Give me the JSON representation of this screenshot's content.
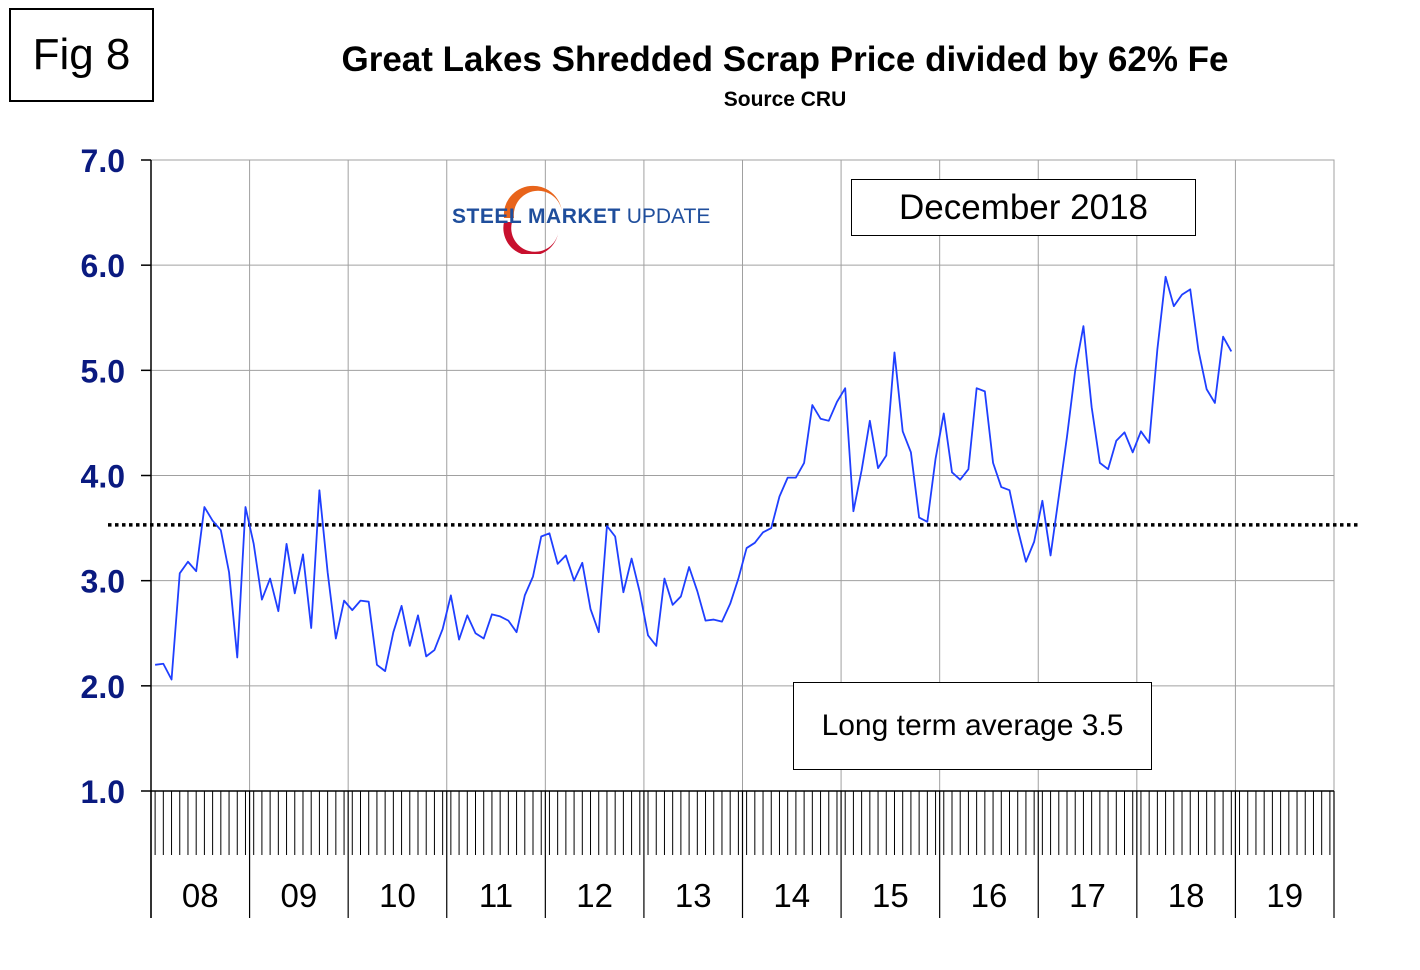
{
  "figure_label": "Fig 8",
  "logo": {
    "word1": "STEEL",
    "word2": "MARKET",
    "word3": "UPDATE",
    "accent": "#e8641b",
    "blue": "#1f4e9c"
  },
  "annotations": {
    "date": "December 2018",
    "average": "Long term average 3.5"
  },
  "chart_data": {
    "type": "line",
    "title": "Great Lakes Shredded Scrap Price divided by 62% Fe",
    "subtitle": "Source CRU",
    "xlabel": "",
    "ylabel": "",
    "ylim": [
      1.0,
      7.0
    ],
    "y_ticks": [
      "1.0",
      "2.0",
      "3.0",
      "4.0",
      "5.0",
      "6.0",
      "7.0"
    ],
    "x_categories": [
      "08",
      "09",
      "10",
      "11",
      "12",
      "13",
      "14",
      "15",
      "16",
      "17",
      "18",
      "19"
    ],
    "reference_line": {
      "value": 3.53,
      "style": "dotted"
    },
    "line_color": "#1f3fff",
    "grid": true,
    "series": [
      {
        "start": "2008-01",
        "interval": "month",
        "values": [
          2.2,
          2.21,
          2.06,
          3.07,
          3.18,
          3.09,
          3.7,
          3.57,
          3.48,
          3.08,
          2.27,
          3.7,
          3.35,
          2.82,
          3.02,
          2.71,
          3.35,
          2.88,
          3.25,
          2.55,
          3.86,
          3.08,
          2.45,
          2.81,
          2.72,
          2.81,
          2.8,
          2.2,
          2.14,
          2.51,
          2.76,
          2.38,
          2.67,
          2.28,
          2.34,
          2.54,
          2.86,
          2.44,
          2.67,
          2.5,
          2.45,
          2.68,
          2.66,
          2.62,
          2.51,
          2.86,
          3.04,
          3.42,
          3.45,
          3.16,
          3.24,
          3.0,
          3.17,
          2.73,
          2.51,
          3.52,
          3.42,
          2.89,
          3.21,
          2.89,
          2.48,
          2.38,
          3.02,
          2.77,
          2.85,
          3.13,
          2.9,
          2.62,
          2.63,
          2.61,
          2.78,
          3.02,
          3.31,
          3.36,
          3.46,
          3.5,
          3.8,
          3.98,
          3.98,
          4.12,
          4.67,
          4.54,
          4.52,
          4.7,
          4.83,
          3.66,
          4.05,
          4.52,
          4.07,
          4.19,
          5.17,
          4.42,
          4.22,
          3.6,
          3.56,
          4.16,
          4.59,
          4.03,
          3.96,
          4.06,
          4.83,
          4.8,
          4.12,
          3.89,
          3.86,
          3.49,
          3.18,
          3.37,
          3.76,
          3.24,
          3.8,
          4.37,
          5.0,
          5.42,
          4.65,
          4.12,
          4.06,
          4.33,
          4.41,
          4.22,
          4.42,
          4.31,
          5.2,
          5.89,
          5.61,
          5.72,
          5.77,
          5.19,
          4.82,
          4.69,
          5.32,
          5.18
        ]
      }
    ]
  }
}
